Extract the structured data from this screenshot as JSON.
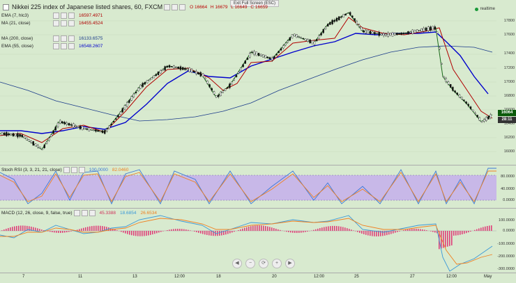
{
  "title": "Nikkei 225 index of Japanese listed shares, 60, FXCM",
  "ohlc": {
    "open": "O 16664",
    "high": "H 16679",
    "low": "L 16649",
    "close": "C 16659"
  },
  "exit_fullscreen": "Exit Full Screen (ESC)",
  "realtime_label": "realtime",
  "legend": [
    {
      "name": "EMA (7, hlc3)",
      "value": "16597.4971",
      "color": "#b00000"
    },
    {
      "name": "MA (21, close)",
      "value": "16455.4524",
      "color": "#b00000"
    },
    {
      "name": "MA (200, close)",
      "value": "16133.6575",
      "color": "#1a3a8a"
    },
    {
      "name": "EMA (55, close)",
      "value": "16548.2607",
      "color": "#0000cc"
    }
  ],
  "stoch_legend": {
    "name": "Stoch RSI (3, 3, 21, 21, close)",
    "value1": "100.0000",
    "value2": "82.0460"
  },
  "macd_legend": {
    "name": "MACD (12, 26, close, 9, false, true)",
    "value1": "45.3388",
    "value2": "18.6854",
    "value3": "26.6534"
  },
  "price_axis": [
    "17800",
    "17600",
    "17400",
    "17200",
    "17000",
    "16800",
    "16600",
    "16400",
    "16200",
    "16000",
    "15800",
    "15600",
    "15400"
  ],
  "stoch_axis": [
    "80.0000",
    "40.0000",
    "0.0000"
  ],
  "macd_axis": [
    "100.0000",
    "0.0000",
    "-100.0000",
    "-200.0000",
    "-300.0000"
  ],
  "price_badge": "16064",
  "time_badge": "28:11",
  "x_labels": [
    "7",
    "11",
    "13",
    "12:00",
    "18",
    "20",
    "12:00",
    "25",
    "27",
    "12:00",
    "May"
  ],
  "nav_buttons": [
    "◀",
    "−",
    "⟳",
    "+",
    "▶"
  ],
  "colors": {
    "bg": "#d8eacf",
    "candle_up": "#1a6a1a",
    "candle_down": "#111111",
    "ema7": "#b00000",
    "ema55": "#0000cc",
    "ma200": "#1a3a8a",
    "stoch_band": "#c8b8e8"
  }
}
